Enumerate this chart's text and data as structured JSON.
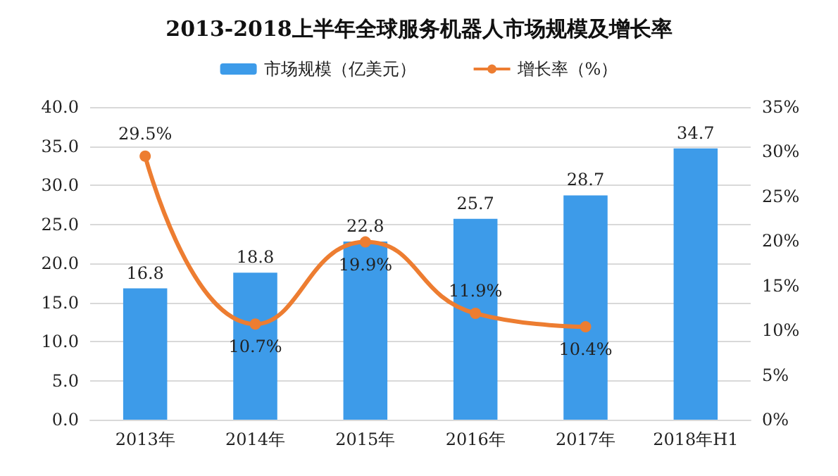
{
  "chart_data": {
    "type": "bar",
    "title": "2013-2018上半年全球服务机器人市场规模及增长率",
    "categories": [
      "2013年",
      "2014年",
      "2015年",
      "2016年",
      "2017年",
      "2018年H1"
    ],
    "series": [
      {
        "name": "市场规模（亿美元）",
        "color": "#3d9be9",
        "values": [
          16.8,
          18.8,
          22.8,
          25.7,
          28.7,
          34.7
        ],
        "value_labels": [
          "16.8",
          "18.8",
          "22.8",
          "25.7",
          "28.7",
          "34.7"
        ]
      },
      {
        "name": "增长率（%）",
        "type": "line",
        "axis": "y2",
        "color": "#ed7d31",
        "marker": "circle",
        "values": [
          29.5,
          10.7,
          19.9,
          11.9,
          10.4,
          null
        ],
        "value_labels": [
          "29.5%",
          "10.7%",
          "19.9%",
          "11.9%",
          "10.4%",
          null
        ]
      }
    ],
    "ylim": [
      0,
      40
    ],
    "yticks": [
      {
        "value": 0,
        "label": "0.0"
      },
      {
        "value": 5,
        "label": "5.0"
      },
      {
        "value": 10,
        "label": "10.0"
      },
      {
        "value": 15,
        "label": "15.0"
      },
      {
        "value": 20,
        "label": "20.0"
      },
      {
        "value": 25,
        "label": "25.0"
      },
      {
        "value": 30,
        "label": "30.0"
      },
      {
        "value": 35,
        "label": "35.0"
      },
      {
        "value": 40,
        "label": "40.0"
      }
    ],
    "y2lim": [
      0,
      35
    ],
    "y2ticks": [
      {
        "value": 0,
        "label": "0%"
      },
      {
        "value": 5,
        "label": "5%"
      },
      {
        "value": 10,
        "label": "10%"
      },
      {
        "value": 15,
        "label": "15%"
      },
      {
        "value": 20,
        "label": "20%"
      },
      {
        "value": 25,
        "label": "25%"
      },
      {
        "value": 30,
        "label": "30%"
      },
      {
        "value": 35,
        "label": "35%"
      }
    ],
    "grid": "y",
    "legend": "top"
  }
}
